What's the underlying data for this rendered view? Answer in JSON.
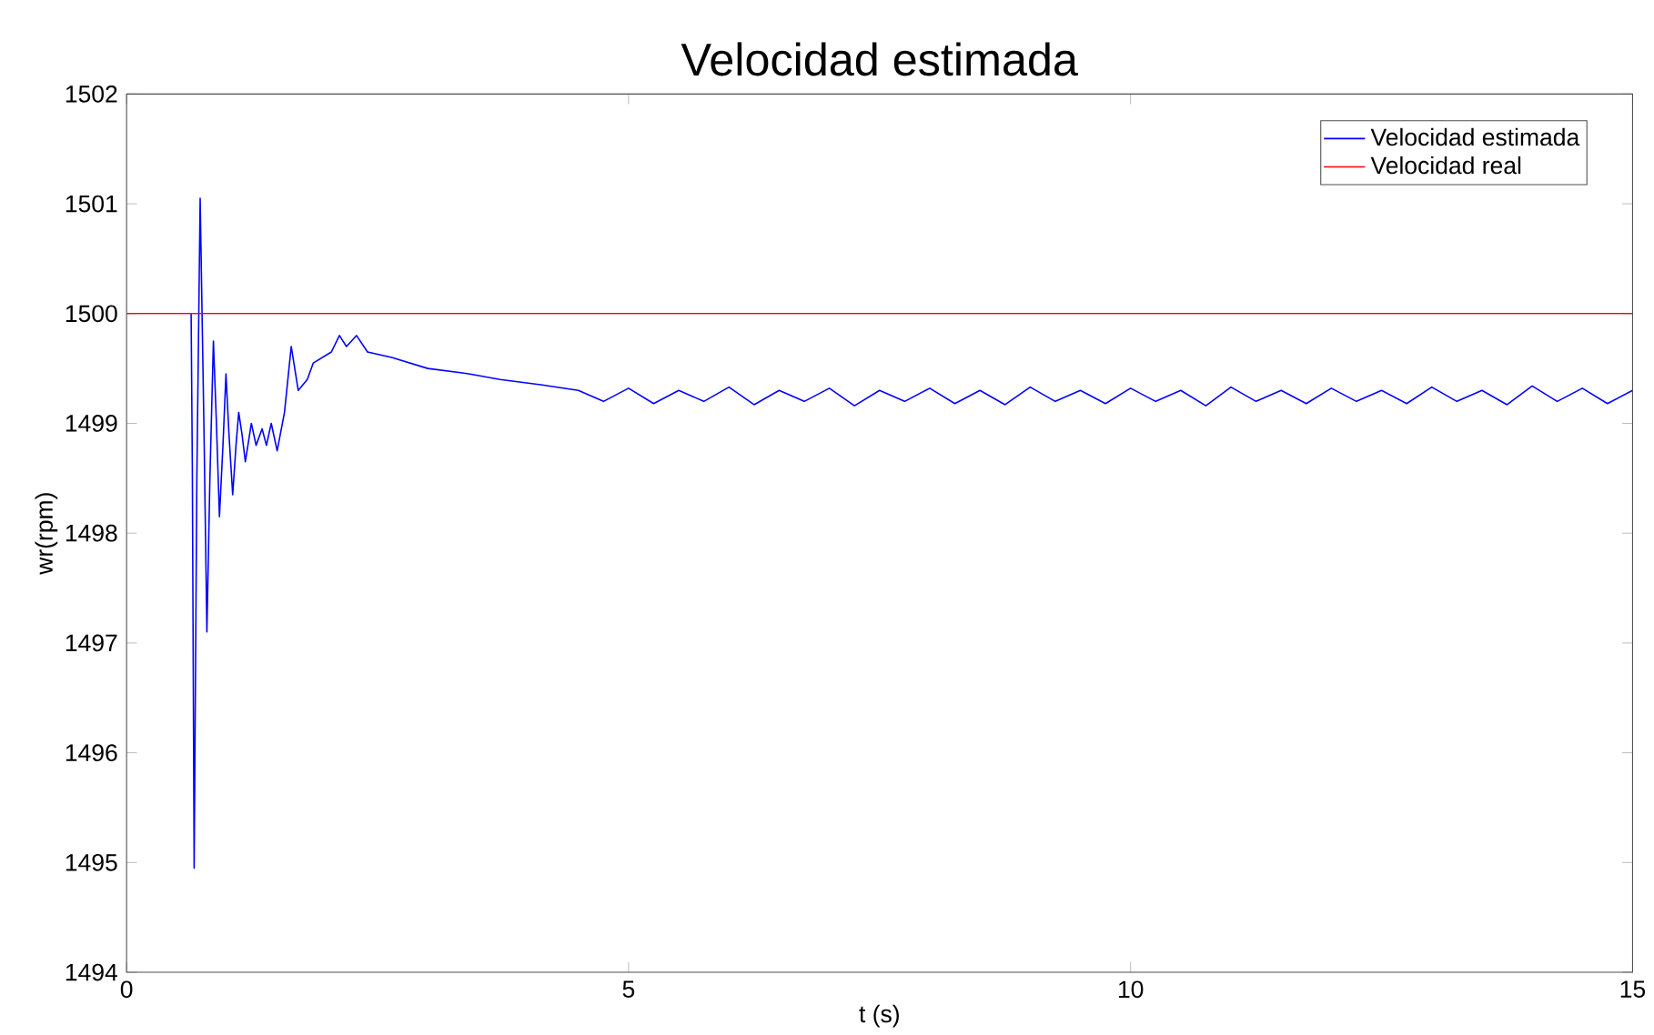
{
  "chart_data": {
    "type": "line",
    "title": "Velocidad estimada",
    "xlabel": "t (s)",
    "ylabel": "wr(rpm)",
    "xlim": [
      0,
      15
    ],
    "ylim": [
      1494,
      1502
    ],
    "xticks": [
      0,
      5,
      10,
      15
    ],
    "yticks": [
      1494,
      1495,
      1496,
      1497,
      1498,
      1499,
      1500,
      1501,
      1502
    ],
    "grid": false,
    "legend": "top right",
    "series": [
      {
        "name": "Velocidad estimada",
        "color": "#0000ff",
        "x": [
          0.643,
          0.655,
          0.673,
          0.7,
          0.733,
          0.77,
          0.8,
          0.83,
          0.865,
          0.895,
          0.925,
          0.96,
          0.99,
          1.02,
          1.057,
          1.09,
          1.117,
          1.15,
          1.183,
          1.243,
          1.29,
          1.35,
          1.393,
          1.441,
          1.5,
          1.573,
          1.64,
          1.71,
          1.8,
          1.86,
          2.04,
          2.12,
          2.19,
          2.29,
          2.4,
          2.64,
          3.0,
          3.42,
          3.72,
          4.14,
          4.5,
          4.75,
          5.0,
          5.25,
          5.5,
          5.75,
          6.0,
          6.25,
          6.5,
          6.75,
          7.0,
          7.25,
          7.5,
          7.75,
          8.0,
          8.25,
          8.5,
          8.75,
          9.0,
          9.25,
          9.5,
          9.75,
          10.0,
          10.25,
          10.5,
          10.75,
          11.0,
          11.25,
          11.5,
          11.75,
          12.0,
          12.25,
          12.5,
          12.75,
          13.0,
          13.25,
          13.5,
          13.75,
          14.0,
          14.25,
          14.5,
          14.75,
          15.0
        ],
        "values": [
          1500.0,
          1498.6,
          1494.95,
          1498.5,
          1501.05,
          1499.0,
          1497.1,
          1498.5,
          1499.75,
          1499.0,
          1498.15,
          1498.8,
          1499.45,
          1498.9,
          1498.35,
          1498.8,
          1499.1,
          1498.9,
          1498.65,
          1499.0,
          1498.8,
          1498.95,
          1498.8,
          1499.0,
          1498.75,
          1499.1,
          1499.7,
          1499.3,
          1499.4,
          1499.55,
          1499.65,
          1499.8,
          1499.7,
          1499.8,
          1499.65,
          1499.6,
          1499.5,
          1499.45,
          1499.4,
          1499.35,
          1499.3,
          1499.2,
          1499.32,
          1499.18,
          1499.3,
          1499.2,
          1499.33,
          1499.17,
          1499.3,
          1499.2,
          1499.32,
          1499.16,
          1499.3,
          1499.2,
          1499.32,
          1499.18,
          1499.3,
          1499.17,
          1499.33,
          1499.2,
          1499.3,
          1499.18,
          1499.32,
          1499.2,
          1499.3,
          1499.16,
          1499.33,
          1499.2,
          1499.3,
          1499.18,
          1499.32,
          1499.2,
          1499.3,
          1499.18,
          1499.33,
          1499.2,
          1499.3,
          1499.17,
          1499.34,
          1499.2,
          1499.32,
          1499.18,
          1499.3
        ]
      },
      {
        "name": "Velocidad real",
        "color": "#ff0000",
        "x": [
          0,
          15
        ],
        "values": [
          1500,
          1500
        ]
      }
    ]
  }
}
